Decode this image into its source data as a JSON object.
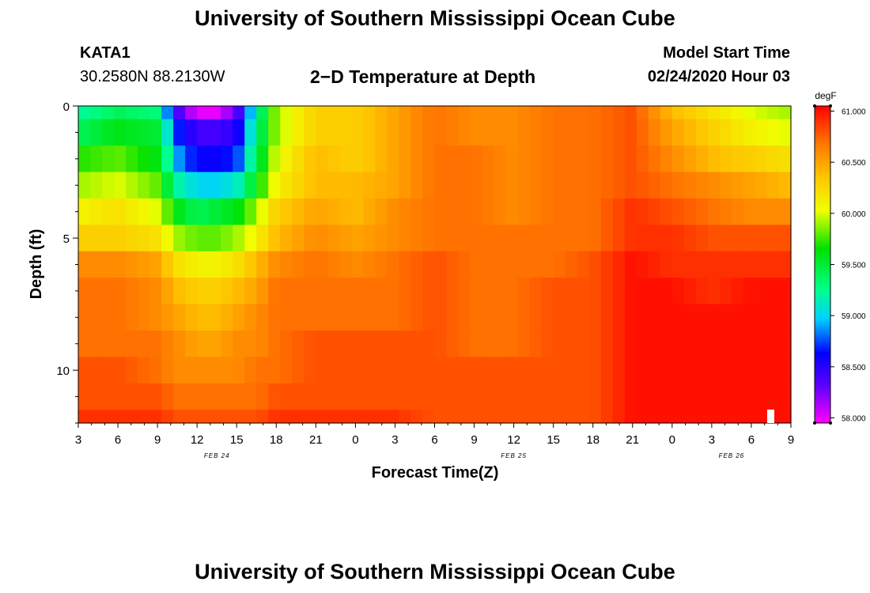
{
  "header": {
    "title": "University of Southern Mississippi Ocean Cube",
    "station": "KATA1",
    "coords": "30.2580N 88.2130W",
    "plot_title": "2−D Temperature at Depth",
    "model_start_label": "Model Start Time",
    "model_start_value": "02/24/2020 Hour 03"
  },
  "footer": {
    "title": "University of Southern Mississippi Ocean Cube"
  },
  "chart_data": {
    "type": "heatmap",
    "title": "2−D Temperature at Depth",
    "xlabel": "Forecast Time(Z)",
    "ylabel": "Depth (ft)",
    "units": "degF",
    "x_hours_range": [
      3,
      57
    ],
    "y_depth_range_ft": [
      0,
      12
    ],
    "y_ticks": [
      "0",
      "5",
      "10"
    ],
    "x_tick_labels": [
      "3",
      "6",
      "9",
      "12",
      "15",
      "18",
      "21",
      "0",
      "3",
      "6",
      "9",
      "12",
      "15",
      "18",
      "21",
      "0",
      "3",
      "6",
      "9"
    ],
    "x_hours": [
      3,
      6,
      9,
      12,
      15,
      18,
      21,
      24,
      27,
      30,
      33,
      36,
      39,
      42,
      45,
      48,
      51,
      54,
      57
    ],
    "date_labels": [
      {
        "text": "FEB 24",
        "hour": 13.5
      },
      {
        "text": "FEB 25",
        "hour": 36
      },
      {
        "text": "FEB 26",
        "hour": 52.5
      }
    ],
    "colorbar": {
      "min": 57.95,
      "max": 61.05,
      "ticks": [
        "61.000",
        "60.500",
        "60.000",
        "59.500",
        "59.000",
        "58.500",
        "58.000"
      ],
      "tick_values": [
        61.0,
        60.5,
        60.0,
        59.5,
        59.0,
        58.5,
        58.0
      ]
    },
    "depth_levels_ft": [
      0,
      1,
      2,
      3,
      4,
      5,
      6,
      7,
      8,
      9,
      10,
      11,
      12
    ],
    "hours": [
      3,
      6,
      9,
      10.5,
      12,
      13.5,
      15,
      16.5,
      18,
      21,
      24,
      27,
      30,
      33,
      36,
      39,
      42,
      45,
      48,
      51,
      54,
      57
    ],
    "temperature_rows": [
      [
        59.2,
        59.4,
        59.3,
        58.4,
        58.0,
        58.0,
        58.3,
        59.2,
        59.9,
        60.3,
        60.3,
        60.5,
        60.7,
        60.6,
        60.6,
        60.7,
        60.7,
        60.8,
        60.4,
        60.2,
        60.0,
        59.9
      ],
      [
        59.4,
        59.6,
        59.5,
        58.7,
        58.4,
        58.4,
        58.5,
        59.3,
        59.9,
        60.3,
        60.3,
        60.5,
        60.7,
        60.6,
        60.6,
        60.7,
        60.7,
        60.8,
        60.5,
        60.3,
        60.1,
        60.0
      ],
      [
        59.7,
        59.8,
        59.6,
        58.9,
        58.6,
        58.6,
        58.7,
        59.4,
        60.0,
        60.4,
        60.3,
        60.5,
        60.7,
        60.7,
        60.6,
        60.7,
        60.7,
        60.8,
        60.6,
        60.4,
        60.3,
        60.2
      ],
      [
        59.9,
        60.0,
        59.8,
        59.2,
        59.0,
        59.0,
        59.1,
        59.6,
        60.1,
        60.4,
        60.4,
        60.5,
        60.7,
        60.7,
        60.6,
        60.7,
        60.7,
        60.8,
        60.7,
        60.6,
        60.5,
        60.4
      ],
      [
        60.1,
        60.2,
        60.0,
        59.6,
        59.4,
        59.5,
        59.6,
        59.9,
        60.3,
        60.5,
        60.4,
        60.6,
        60.7,
        60.7,
        60.6,
        60.7,
        60.7,
        60.9,
        60.8,
        60.7,
        60.6,
        60.6
      ],
      [
        60.3,
        60.3,
        60.2,
        59.9,
        59.8,
        59.8,
        59.9,
        60.1,
        60.4,
        60.6,
        60.5,
        60.6,
        60.7,
        60.7,
        60.7,
        60.7,
        60.7,
        60.9,
        60.9,
        60.8,
        60.8,
        60.8
      ],
      [
        60.6,
        60.6,
        60.5,
        60.2,
        60.1,
        60.1,
        60.2,
        60.4,
        60.6,
        60.7,
        60.6,
        60.7,
        60.8,
        60.7,
        60.7,
        60.7,
        60.8,
        61.0,
        60.9,
        60.9,
        60.9,
        60.9
      ],
      [
        60.7,
        60.7,
        60.6,
        60.4,
        60.3,
        60.3,
        60.4,
        60.5,
        60.7,
        60.7,
        60.7,
        60.7,
        60.8,
        60.7,
        60.7,
        60.8,
        60.8,
        61.0,
        61.0,
        60.9,
        61.0,
        61.0
      ],
      [
        60.7,
        60.7,
        60.6,
        60.5,
        60.4,
        60.4,
        60.5,
        60.6,
        60.7,
        60.7,
        60.7,
        60.7,
        60.8,
        60.7,
        60.7,
        60.8,
        60.8,
        61.0,
        61.0,
        61.0,
        61.0,
        61.0
      ],
      [
        60.7,
        60.7,
        60.7,
        60.6,
        60.5,
        60.5,
        60.6,
        60.6,
        60.7,
        60.8,
        60.8,
        60.8,
        60.8,
        60.7,
        60.7,
        60.8,
        60.8,
        61.0,
        61.0,
        61.0,
        61.0,
        61.0
      ],
      [
        60.8,
        60.8,
        60.7,
        60.6,
        60.6,
        60.6,
        60.6,
        60.7,
        60.7,
        60.8,
        60.8,
        60.8,
        60.8,
        60.8,
        60.8,
        60.8,
        60.8,
        61.0,
        61.0,
        61.0,
        61.0,
        61.0
      ],
      [
        60.8,
        60.8,
        60.8,
        60.7,
        60.7,
        60.7,
        60.7,
        60.7,
        60.8,
        60.8,
        60.8,
        60.8,
        60.8,
        60.8,
        60.8,
        60.8,
        60.8,
        61.0,
        61.0,
        61.0,
        61.0,
        61.0
      ],
      [
        60.9,
        60.9,
        60.9,
        60.8,
        60.8,
        60.8,
        60.8,
        60.8,
        60.9,
        60.9,
        60.9,
        60.9,
        60.8,
        60.8,
        60.8,
        60.8,
        60.8,
        61.0,
        61.0,
        61.0,
        61.0,
        61.0
      ]
    ]
  }
}
